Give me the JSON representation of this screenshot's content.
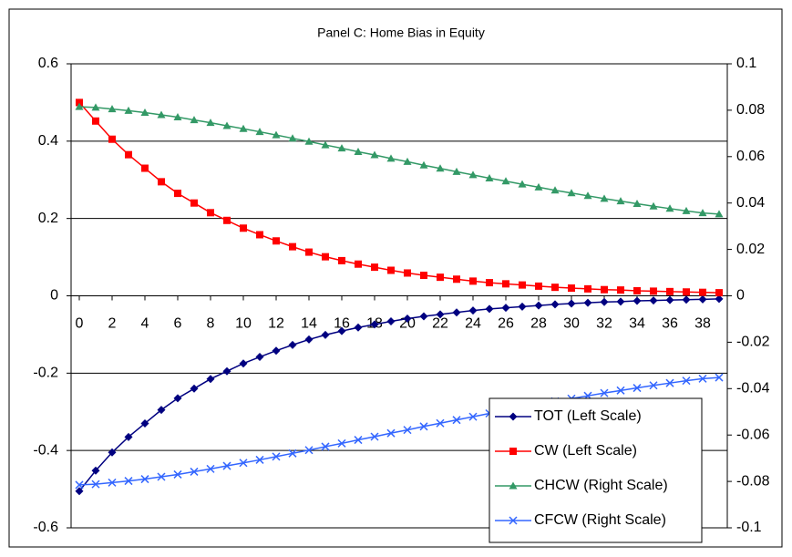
{
  "chart_data": {
    "type": "line",
    "title": "Panel C: Home Bias in Equity",
    "x": [
      0,
      1,
      2,
      3,
      4,
      5,
      6,
      7,
      8,
      9,
      10,
      11,
      12,
      13,
      14,
      15,
      16,
      17,
      18,
      19,
      20,
      21,
      22,
      23,
      24,
      25,
      26,
      27,
      28,
      29,
      30,
      31,
      32,
      33,
      34,
      35,
      36,
      37,
      38,
      39
    ],
    "xlim": [
      -0.5,
      39.5
    ],
    "xticks": [
      0,
      2,
      4,
      6,
      8,
      10,
      12,
      14,
      16,
      18,
      20,
      22,
      24,
      26,
      28,
      30,
      32,
      34,
      36,
      38
    ],
    "ylim": [
      -0.6,
      0.6
    ],
    "yticks": [
      -0.6,
      -0.4,
      -0.2,
      0,
      0.2,
      0.4,
      0.6
    ],
    "y2lim": [
      -0.1,
      0.1
    ],
    "y2ticks": [
      -0.1,
      -0.08,
      -0.06,
      -0.04,
      -0.02,
      0,
      0.02,
      0.04,
      0.06,
      0.08,
      0.1
    ],
    "grid": true,
    "legend": "lower right",
    "series": [
      {
        "name": "TOT (Left Scale)",
        "color": "#000080",
        "marker": "diamond",
        "values": [
          -0.505,
          -0.452,
          -0.405,
          -0.365,
          -0.33,
          -0.295,
          -0.265,
          -0.24,
          -0.215,
          -0.195,
          -0.175,
          -0.158,
          -0.142,
          -0.127,
          -0.113,
          -0.101,
          -0.091,
          -0.082,
          -0.074,
          -0.066,
          -0.059,
          -0.053,
          -0.048,
          -0.043,
          -0.038,
          -0.034,
          -0.031,
          -0.028,
          -0.025,
          -0.022,
          -0.02,
          -0.018,
          -0.016,
          -0.015,
          -0.013,
          -0.012,
          -0.011,
          -0.01,
          -0.009,
          -0.008
        ]
      },
      {
        "name": "CW (Left Scale)",
        "color": "#ff0000",
        "marker": "square",
        "values": [
          0.5,
          0.452,
          0.405,
          0.365,
          0.33,
          0.295,
          0.265,
          0.24,
          0.215,
          0.195,
          0.175,
          0.158,
          0.142,
          0.127,
          0.113,
          0.101,
          0.091,
          0.082,
          0.074,
          0.066,
          0.059,
          0.053,
          0.048,
          0.043,
          0.038,
          0.034,
          0.031,
          0.028,
          0.025,
          0.022,
          0.02,
          0.018,
          0.016,
          0.015,
          0.013,
          0.012,
          0.011,
          0.01,
          0.009,
          0.008
        ]
      },
      {
        "name": "CHCW (Right Scale)",
        "color": "#339966",
        "marker": "triangle",
        "axis": "y2",
        "values": [
          0.0815,
          0.0812,
          0.0805,
          0.0798,
          0.079,
          0.078,
          0.077,
          0.0758,
          0.0746,
          0.0733,
          0.072,
          0.0707,
          0.0693,
          0.0679,
          0.0665,
          0.065,
          0.0636,
          0.0621,
          0.0607,
          0.0592,
          0.0578,
          0.0563,
          0.0549,
          0.0535,
          0.0521,
          0.0507,
          0.0494,
          0.0481,
          0.0468,
          0.0455,
          0.0443,
          0.0431,
          0.0419,
          0.0408,
          0.0397,
          0.0386,
          0.0376,
          0.0366,
          0.0357,
          0.0352
        ]
      },
      {
        "name": "CFCW (Right Scale)",
        "color": "#3366ff",
        "marker": "x",
        "axis": "y2",
        "values": [
          -0.0815,
          -0.0812,
          -0.0805,
          -0.0798,
          -0.079,
          -0.078,
          -0.077,
          -0.0758,
          -0.0746,
          -0.0733,
          -0.072,
          -0.0707,
          -0.0693,
          -0.0679,
          -0.0665,
          -0.065,
          -0.0636,
          -0.0621,
          -0.0607,
          -0.0592,
          -0.0578,
          -0.0563,
          -0.0549,
          -0.0535,
          -0.0521,
          -0.0507,
          -0.0494,
          -0.0481,
          -0.0468,
          -0.0455,
          -0.0443,
          -0.0431,
          -0.0419,
          -0.0408,
          -0.0397,
          -0.0386,
          -0.0376,
          -0.0366,
          -0.0357,
          -0.0352
        ]
      }
    ]
  }
}
